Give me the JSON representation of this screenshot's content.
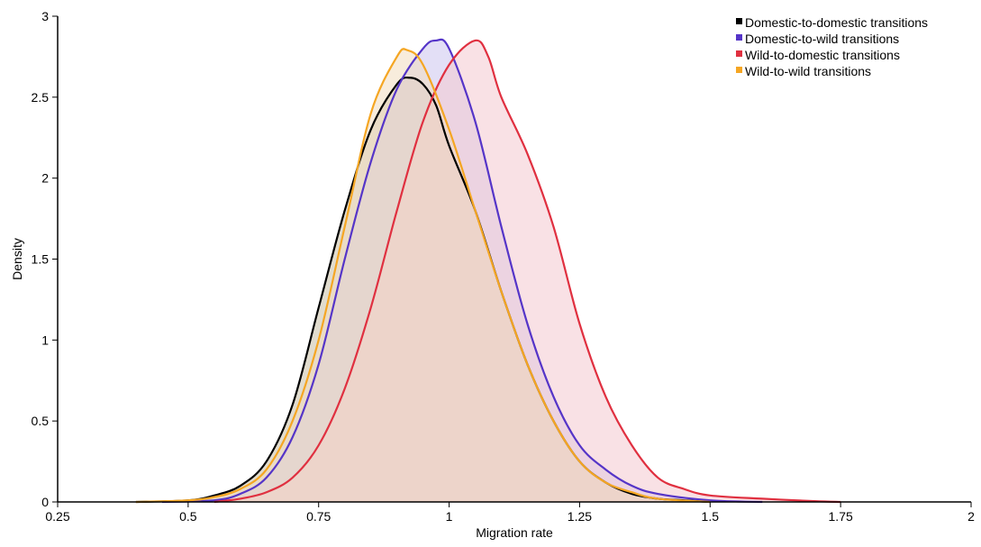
{
  "chart_data": {
    "type": "area",
    "title": "",
    "xlabel": "Migration rate",
    "ylabel": "Density",
    "xlim": [
      0.25,
      2
    ],
    "ylim": [
      0,
      3
    ],
    "x_ticks": [
      0.25,
      0.5,
      0.75,
      1,
      1.25,
      1.5,
      1.75,
      2
    ],
    "x_tick_labels": [
      "0.25",
      "0.5",
      "0.75",
      "1",
      "1.25",
      "1.5",
      "1.75",
      "2"
    ],
    "y_ticks": [
      0,
      0.5,
      1,
      1.5,
      2,
      2.5,
      3
    ],
    "y_tick_labels": [
      "0",
      "0.5",
      "1",
      "1.5",
      "2",
      "2.5",
      "3"
    ],
    "grid": false,
    "legend_position": "top-right",
    "series": [
      {
        "name": "Domestic-to-domestic transitions",
        "color": "#000000",
        "fill": "#c8bfa6",
        "x": [
          0.4,
          0.5,
          0.55,
          0.6,
          0.65,
          0.7,
          0.75,
          0.8,
          0.85,
          0.9,
          0.925,
          0.95,
          0.975,
          1.0,
          1.05,
          1.1,
          1.15,
          1.2,
          1.25,
          1.3,
          1.35,
          1.4,
          1.45,
          1.5
        ],
        "y": [
          0.0,
          0.01,
          0.04,
          0.1,
          0.25,
          0.6,
          1.2,
          1.8,
          2.3,
          2.58,
          2.62,
          2.58,
          2.45,
          2.2,
          1.8,
          1.3,
          0.85,
          0.5,
          0.25,
          0.12,
          0.05,
          0.02,
          0.01,
          0.0
        ]
      },
      {
        "name": "Domestic-to-wild transitions",
        "color": "#5535c8",
        "fill": "#ccc4ee",
        "x": [
          0.45,
          0.55,
          0.6,
          0.65,
          0.7,
          0.75,
          0.8,
          0.85,
          0.9,
          0.95,
          0.975,
          1.0,
          1.05,
          1.1,
          1.15,
          1.2,
          1.25,
          1.3,
          1.35,
          1.4,
          1.5,
          1.6
        ],
        "y": [
          0.0,
          0.01,
          0.05,
          0.15,
          0.4,
          0.85,
          1.5,
          2.1,
          2.55,
          2.8,
          2.85,
          2.8,
          2.35,
          1.7,
          1.1,
          0.65,
          0.35,
          0.2,
          0.1,
          0.05,
          0.01,
          0.0
        ]
      },
      {
        "name": "Wild-to-domestic transitions",
        "color": "#e03040",
        "fill": "#f4c8cf",
        "x": [
          0.55,
          0.6,
          0.65,
          0.7,
          0.75,
          0.8,
          0.85,
          0.9,
          0.95,
          1.0,
          1.05,
          1.075,
          1.1,
          1.15,
          1.2,
          1.25,
          1.3,
          1.35,
          1.4,
          1.45,
          1.5,
          1.6,
          1.7,
          1.75
        ],
        "y": [
          0.0,
          0.02,
          0.06,
          0.15,
          0.35,
          0.7,
          1.2,
          1.8,
          2.35,
          2.7,
          2.85,
          2.75,
          2.5,
          2.15,
          1.7,
          1.1,
          0.65,
          0.35,
          0.15,
          0.08,
          0.04,
          0.02,
          0.005,
          0.0
        ]
      },
      {
        "name": "Wild-to-wild transitions",
        "color": "#f5a623",
        "fill": "#f3dcc0",
        "x": [
          0.4,
          0.5,
          0.55,
          0.6,
          0.65,
          0.7,
          0.75,
          0.8,
          0.85,
          0.9,
          0.92,
          0.95,
          1.0,
          1.05,
          1.1,
          1.15,
          1.2,
          1.25,
          1.3,
          1.35,
          1.4,
          1.5
        ],
        "y": [
          0.0,
          0.01,
          0.03,
          0.08,
          0.2,
          0.5,
          1.0,
          1.7,
          2.4,
          2.75,
          2.79,
          2.7,
          2.3,
          1.8,
          1.3,
          0.85,
          0.5,
          0.25,
          0.12,
          0.06,
          0.02,
          0.0
        ]
      }
    ]
  }
}
